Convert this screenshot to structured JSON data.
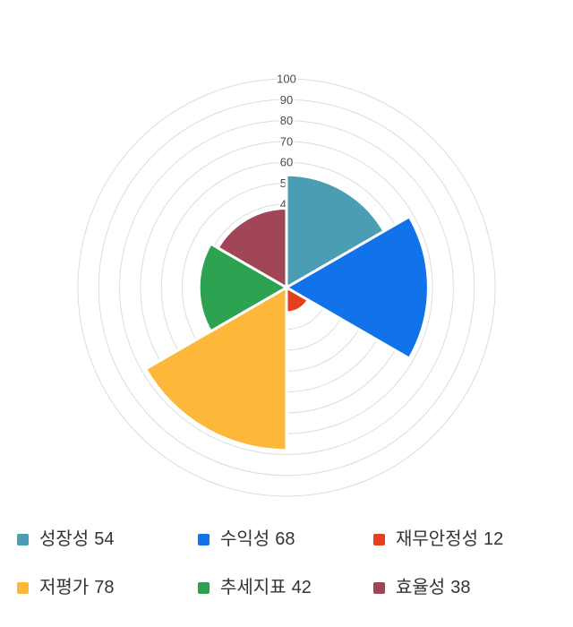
{
  "chart_data": {
    "type": "rose",
    "title": "",
    "categories": [
      "성장성",
      "수익성",
      "재무안정성",
      "저평가",
      "추세지표",
      "효율성"
    ],
    "values": [
      54,
      68,
      12,
      78,
      42,
      38
    ],
    "colors": [
      "#4A9DB3",
      "#1272EA",
      "#E4401E",
      "#FDB83A",
      "#2DA351",
      "#A04656"
    ],
    "angle_start_deg": 0,
    "sector_angle_deg": 60,
    "radial_axis": {
      "min": 0,
      "max": 100,
      "grid_step": 10,
      "visible_tick_labels": [
        40,
        50,
        60,
        70,
        80,
        90,
        100
      ]
    },
    "grid": true,
    "gridline_color": "#DCDCDC",
    "tick_label_color": "#4A4A4A",
    "legend_position": "bottom",
    "legend_text_color": "#333333",
    "background_color": "#FFFFFF"
  }
}
